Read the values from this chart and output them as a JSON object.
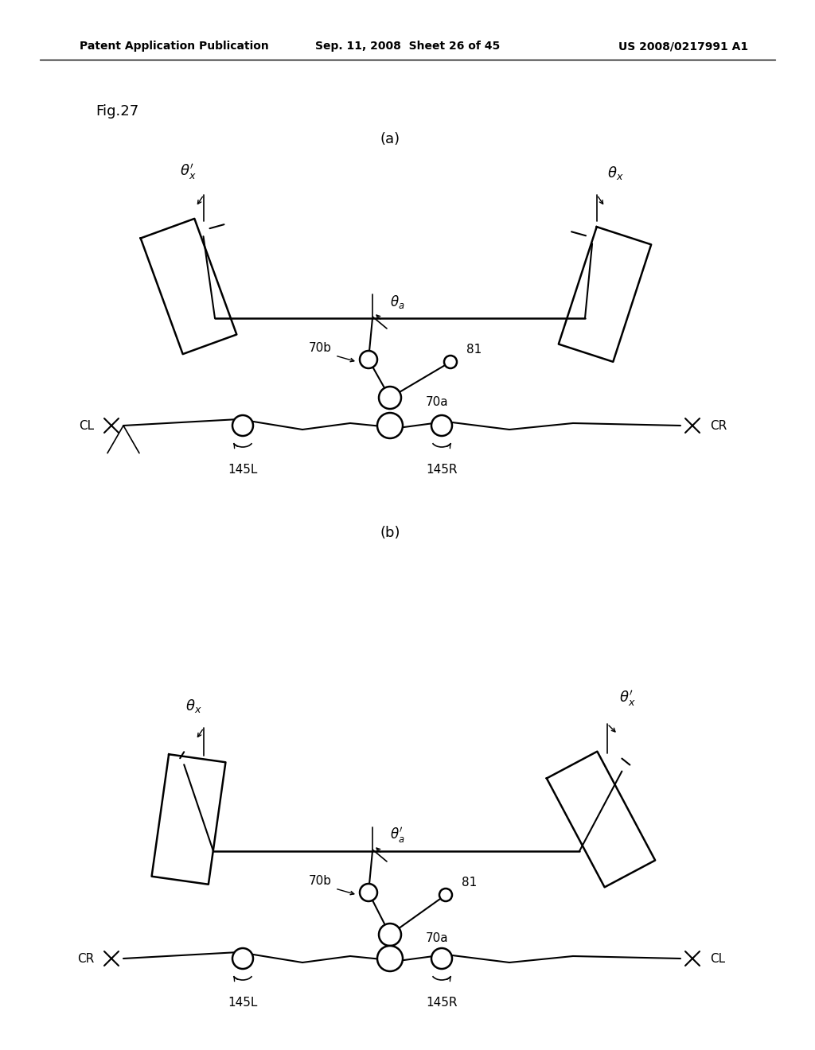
{
  "title": "Fig.27",
  "header_left": "Patent Application Publication",
  "header_mid": "Sep. 11, 2008  Sheet 26 of 45",
  "header_right": "US 2008/0217991 A1",
  "label_a": "(a)",
  "label_b": "(b)",
  "bg_color": "#ffffff",
  "line_color": "#000000"
}
